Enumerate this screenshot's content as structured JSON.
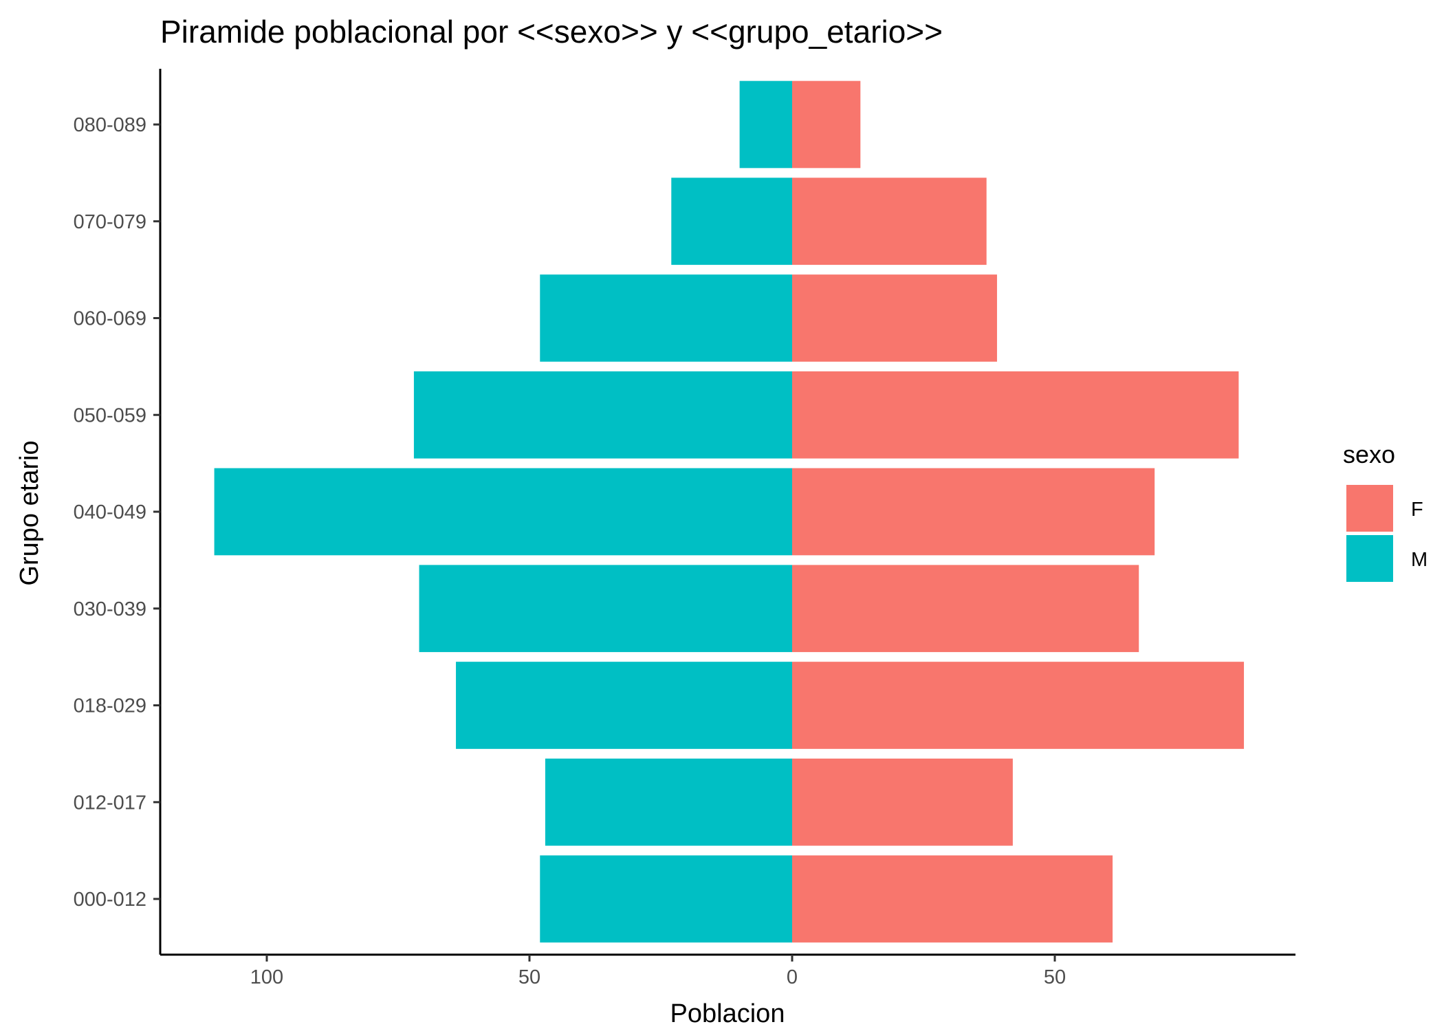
{
  "chart_data": {
    "type": "bar",
    "orientation": "horizontal",
    "title": "Piramide poblacional por <<sexo>> y <<grupo_etario>>",
    "xlabel": "Poblacion",
    "ylabel": "Grupo etario",
    "categories": [
      "000-012",
      "012-017",
      "018-029",
      "030-039",
      "040-049",
      "050-059",
      "060-069",
      "070-079",
      "080-089"
    ],
    "series": [
      {
        "name": "F",
        "color": "#F8766D",
        "side": "right",
        "values": [
          61,
          42,
          86,
          66,
          69,
          85,
          39,
          37,
          13
        ]
      },
      {
        "name": "M",
        "color": "#00BFC4",
        "side": "left",
        "values": [
          48,
          47,
          64,
          71,
          110,
          72,
          48,
          23,
          10
        ]
      }
    ],
    "xlim": [
      -120,
      96
    ],
    "xticks": [
      {
        "value": -100,
        "label": "100"
      },
      {
        "value": -50,
        "label": "50"
      },
      {
        "value": 0,
        "label": "0"
      },
      {
        "value": 50,
        "label": "50"
      }
    ],
    "legend": {
      "title": "sexo",
      "position": "right"
    },
    "grid": false
  }
}
